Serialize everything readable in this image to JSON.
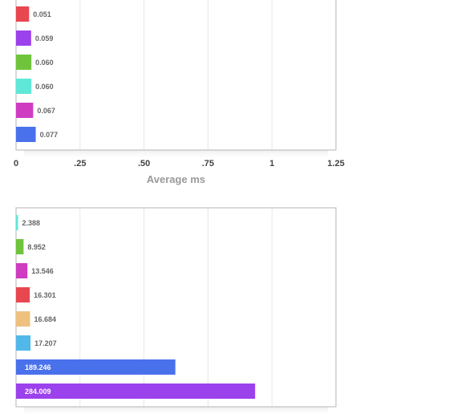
{
  "charts": [
    {
      "chart_data": {
        "type": "bar",
        "orientation": "horizontal",
        "values": [
          0.051,
          0.059,
          0.06,
          0.06,
          0.067,
          0.077
        ],
        "value_labels": [
          "0.051",
          "0.059",
          "0.060",
          "0.060",
          "0.067",
          "0.077"
        ],
        "colors": [
          "#e8474f",
          "#9b42ec",
          "#6fc43b",
          "#5fe8d8",
          "#cf3cc1",
          "#4a71ec"
        ],
        "xlim": [
          0,
          1.25
        ],
        "xticks": [
          0,
          0.25,
          0.5,
          0.75,
          1,
          1.25
        ],
        "xtick_labels": [
          "0",
          ".25",
          ".50",
          ".75",
          "1",
          "1.25"
        ],
        "xlabel": "Average ms",
        "grid": true
      }
    },
    {
      "chart_data": {
        "type": "bar",
        "orientation": "horizontal",
        "values": [
          2.388,
          8.952,
          13.546,
          16.301,
          16.684,
          17.207,
          189.246,
          284.009
        ],
        "value_labels": [
          "2.388",
          "8.952",
          "13.546",
          "16.301",
          "16.684",
          "17.207",
          "189.246",
          "284.009"
        ],
        "colors": [
          "#5fe8d8",
          "#6fc43b",
          "#cf3cc1",
          "#e8474f",
          "#eec17f",
          "#52b8ea",
          "#4a71ec",
          "#9b42ec"
        ],
        "xlim": [
          0,
          380
        ],
        "grid": true
      }
    }
  ]
}
